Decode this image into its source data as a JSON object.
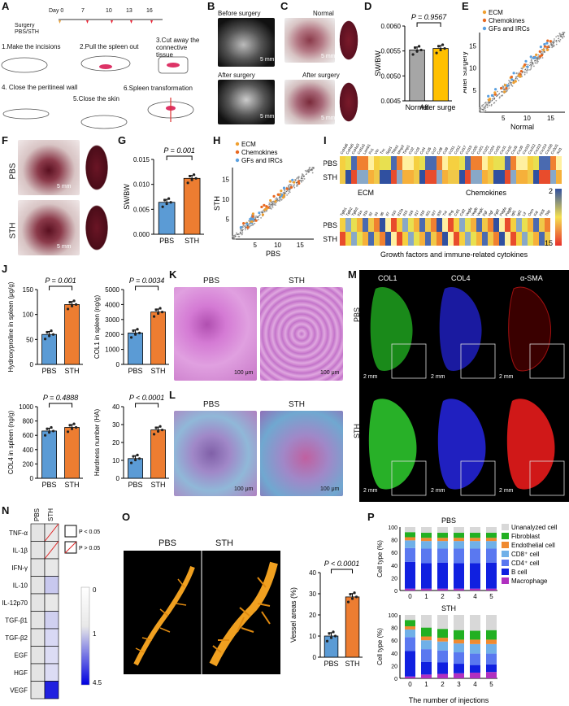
{
  "panels": {
    "A": {
      "label": "A",
      "timeline_ticks": [
        "Day 0",
        "7",
        "10",
        "13",
        "16"
      ],
      "surgery_line1": "Surgery",
      "surgery_line2": "PBS/STH",
      "steps": [
        "1.Make the incisions",
        "2.Pull the spleen out",
        "3.Cut away the connective tissue",
        "4. Close the peritineal wall",
        "5.Close the skin",
        "6.Spleen transformation"
      ]
    },
    "B": {
      "label": "B",
      "before": "Before surgery",
      "after": "After surgery",
      "scale": "5 mm"
    },
    "C": {
      "label": "C",
      "normal": "Normal",
      "after": "After surgery",
      "scale": "5 mm"
    },
    "D": {
      "label": "D",
      "pvalue": "P = 0.9567",
      "ylabel": "SW/BW",
      "yticks": [
        "0.0045",
        "0.0050",
        "0.0055",
        "0.0060"
      ],
      "categories": [
        "Normal",
        "After surgery"
      ]
    },
    "E": {
      "label": "E",
      "legend": [
        "ECM",
        "Chemokines",
        "GFs and IRCs"
      ],
      "xlabel": "Normal",
      "ylabel": "After surgery",
      "ticks": [
        "5",
        "10",
        "15"
      ]
    },
    "F": {
      "label": "F",
      "groups": [
        "PBS",
        "STH"
      ],
      "scale": "5 mm"
    },
    "G": {
      "label": "G",
      "pvalue": "P = 0.001",
      "ylabel": "SW/BW",
      "yticks": [
        "0.000",
        "0.005",
        "0.010",
        "0.015"
      ],
      "categories": [
        "PBS",
        "STH"
      ]
    },
    "H": {
      "label": "H",
      "legend": [
        "ECM",
        "Chemokines",
        "GFs and IRCs"
      ],
      "xlabel": "PBS",
      "ylabel": "STH",
      "ticks": [
        "5",
        "10",
        "15"
      ]
    },
    "I": {
      "label": "I",
      "rows": [
        "PBS",
        "STH"
      ],
      "group1": "ECM",
      "group2": "Chemokines",
      "group3": "Growth factors and immune-related cytokines",
      "scale_max": "2",
      "scale_min": "15",
      "ecm_genes": [
        "Col4a6",
        "Col4a5",
        "Col4a3",
        "Col1a1",
        "Lamb1",
        "Fn1",
        "Vtn",
        "Tnc",
        "Spp1",
        "Thbs1",
        "Mmp2",
        "Timp1"
      ],
      "chemo_genes": [
        "Ccl2",
        "Ccl3",
        "Ccl4",
        "Ccl5",
        "Ccl7",
        "Ccl8",
        "Ccl9",
        "Ccl11",
        "Ccl12",
        "Ccl17",
        "Ccl19",
        "Ccl20",
        "Ccl21",
        "Ccl22",
        "Ccl24",
        "Ccl25",
        "Cxcl1",
        "Cxcl2",
        "Cxcl5",
        "Cxcl9",
        "Cxcl10",
        "Cxcl12",
        "Cxcl13",
        "Cxcl14",
        "Cxcl16",
        "Cx3cl1",
        "Xcl1"
      ],
      "gf_genes": [
        "Tgfb1",
        "Tgfb2",
        "Tgfb3",
        "Il1a",
        "Il1b",
        "Il2",
        "Il4",
        "Il6",
        "Il7",
        "Il10",
        "Il12a",
        "Il15",
        "Il16",
        "Il17",
        "Il18",
        "Il21",
        "Il27",
        "Il33",
        "Tnf",
        "Ifng",
        "Csf1",
        "Csf2",
        "Vegfa",
        "Vegfb",
        "Vegfc",
        "Egf",
        "Hgf",
        "Fgf2",
        "Pdgfa",
        "Pdgfb",
        "Igf1",
        "Igf2",
        "Lif",
        "Osm",
        "Kitl",
        "Flt3l",
        "Tslp"
      ]
    },
    "J": {
      "label": "J",
      "charts": [
        {
          "pvalue": "P = 0.001",
          "ylabel": "Hydroxyproline in spleen (μg/g)",
          "yticks": [
            "0",
            "50",
            "100",
            "150"
          ],
          "categories": [
            "PBS",
            "STH"
          ]
        },
        {
          "pvalue": "P = 0.0034",
          "ylabel": "COL1 in spleen (ng/g)",
          "yticks": [
            "0",
            "1000",
            "2000",
            "3000",
            "4000",
            "5000"
          ],
          "categories": [
            "PBS",
            "STH"
          ]
        },
        {
          "pvalue": "P = 0.4888",
          "ylabel": "COL4 in spleen (ng/g)",
          "yticks": [
            "0",
            "200",
            "400",
            "600",
            "800",
            "1000"
          ],
          "categories": [
            "PBS",
            "STH"
          ]
        },
        {
          "pvalue": "P < 0.0001",
          "ylabel": "Hardness number (HA)",
          "yticks": [
            "0",
            "10",
            "20",
            "30",
            "40"
          ],
          "categories": [
            "PBS",
            "STH"
          ]
        }
      ]
    },
    "K": {
      "label": "K",
      "groups": [
        "PBS",
        "STH"
      ],
      "scale": "100 μm"
    },
    "L": {
      "label": "L",
      "groups": [
        "PBS",
        "STH"
      ],
      "scale": "100 μm"
    },
    "M": {
      "label": "M",
      "stains": [
        "COL1",
        "COL4",
        "α-SMA"
      ],
      "groups": [
        "PBS",
        "STH"
      ],
      "scale": "2 mm"
    },
    "N": {
      "label": "N",
      "cols": [
        "PBS",
        "STH"
      ],
      "rows": [
        "TNF-α",
        "IL-1β",
        "IFN-γ",
        "IL-10",
        "IL-12p70",
        "TGF-β1",
        "TGF-β2",
        "EGF",
        "HGF",
        "VEGF"
      ],
      "legend_p1": "P < 0.05",
      "legend_p2": "P > 0.05",
      "scale": [
        "0",
        "1",
        "4.5"
      ]
    },
    "O": {
      "label": "O",
      "groups": [
        "PBS",
        "STH"
      ],
      "pvalue": "P < 0.0001",
      "ylabel": "Vessel areas (%)",
      "yticks": [
        "0",
        "10",
        "20",
        "30",
        "40"
      ],
      "categories": [
        "PBS",
        "STH"
      ]
    },
    "P": {
      "label": "P",
      "top_title": "PBS",
      "bottom_title": "STH",
      "ylabel": "Cell type (%)",
      "xlabel": "The number of injections",
      "yticks": [
        "0",
        "20",
        "40",
        "60",
        "80",
        "100"
      ],
      "xticks": [
        "0",
        "1",
        "2",
        "3",
        "4",
        "5"
      ],
      "legend": [
        "Unanalyzed cell",
        "Fibroblast",
        "Endothelial cell",
        "CD8⁺ cell",
        "CD4⁺ cell",
        "B cell",
        "Macrophage"
      ]
    }
  },
  "colors": {
    "blue": "#5b9bd5",
    "orange": "#ed7d31",
    "gray": "#a6a6a6",
    "yellow": "#ffc000"
  },
  "chart_data": [
    {
      "id": "D",
      "type": "bar",
      "categories": [
        "Normal",
        "After surgery"
      ],
      "values": [
        0.00552,
        0.00555
      ],
      "ylim": [
        0.0045,
        0.006
      ],
      "ylabel": "SW/BW",
      "title": "P = 0.9567"
    },
    {
      "id": "G",
      "type": "bar",
      "categories": [
        "PBS",
        "STH"
      ],
      "values": [
        0.0064,
        0.0112
      ],
      "ylim": [
        0,
        0.015
      ],
      "ylabel": "SW/BW",
      "title": "P = 0.001"
    },
    {
      "id": "J1",
      "type": "bar",
      "categories": [
        "PBS",
        "STH"
      ],
      "values": [
        60,
        120
      ],
      "ylim": [
        0,
        150
      ],
      "ylabel": "Hydroxyproline in spleen (μg/g)",
      "title": "P = 0.001"
    },
    {
      "id": "J2",
      "type": "bar",
      "categories": [
        "PBS",
        "STH"
      ],
      "values": [
        2100,
        3500
      ],
      "ylim": [
        0,
        5000
      ],
      "ylabel": "COL1 in spleen (ng/g)",
      "title": "P = 0.0034"
    },
    {
      "id": "J3",
      "type": "bar",
      "categories": [
        "PBS",
        "STH"
      ],
      "values": [
        660,
        710
      ],
      "ylim": [
        0,
        1000
      ],
      "ylabel": "COL4 in spleen (ng/g)",
      "title": "P = 0.4888"
    },
    {
      "id": "J4",
      "type": "bar",
      "categories": [
        "PBS",
        "STH"
      ],
      "values": [
        11,
        27
      ],
      "ylim": [
        0,
        40
      ],
      "ylabel": "Hardness number (HA)",
      "title": "P < 0.0001"
    },
    {
      "id": "O",
      "type": "bar",
      "categories": [
        "PBS",
        "STH"
      ],
      "values": [
        10,
        28.5
      ],
      "ylim": [
        0,
        40
      ],
      "ylabel": "Vessel areas (%)",
      "title": "P < 0.0001"
    },
    {
      "id": "P_PBS",
      "type": "bar",
      "stacked": true,
      "categories": [
        "0",
        "1",
        "2",
        "3",
        "4",
        "5"
      ],
      "series": [
        {
          "name": "Macrophage",
          "values": [
            3,
            3,
            3,
            3,
            3,
            3
          ]
        },
        {
          "name": "B cell",
          "values": [
            42,
            40,
            41,
            40,
            40,
            41
          ]
        },
        {
          "name": "CD4⁺ cell",
          "values": [
            22,
            23,
            22,
            23,
            23,
            22
          ]
        },
        {
          "name": "CD8⁺ cell",
          "values": [
            12,
            12,
            12,
            12,
            12,
            12
          ]
        },
        {
          "name": "Endothelial cell",
          "values": [
            5,
            5,
            5,
            5,
            5,
            5
          ]
        },
        {
          "name": "Fibroblast",
          "values": [
            8,
            8,
            8,
            8,
            8,
            8
          ]
        },
        {
          "name": "Unanalyzed cell",
          "values": [
            8,
            9,
            9,
            9,
            9,
            9
          ]
        }
      ]
    },
    {
      "id": "P_STH",
      "type": "bar",
      "stacked": true,
      "categories": [
        "0",
        "1",
        "2",
        "3",
        "4",
        "5"
      ],
      "series": [
        {
          "name": "Macrophage",
          "values": [
            3,
            6,
            7,
            8,
            9,
            10
          ]
        },
        {
          "name": "B cell",
          "values": [
            40,
            20,
            18,
            15,
            12,
            12
          ]
        },
        {
          "name": "CD4⁺ cell",
          "values": [
            22,
            20,
            19,
            18,
            18,
            17
          ]
        },
        {
          "name": "CD8⁺ cell",
          "values": [
            12,
            14,
            14,
            14,
            15,
            15
          ]
        },
        {
          "name": "Endothelial cell",
          "values": [
            5,
            6,
            6,
            6,
            7,
            7
          ]
        },
        {
          "name": "Fibroblast",
          "values": [
            10,
            14,
            14,
            15,
            14,
            15
          ]
        },
        {
          "name": "Unanalyzed cell",
          "values": [
            8,
            20,
            22,
            24,
            25,
            24
          ]
        }
      ]
    }
  ]
}
